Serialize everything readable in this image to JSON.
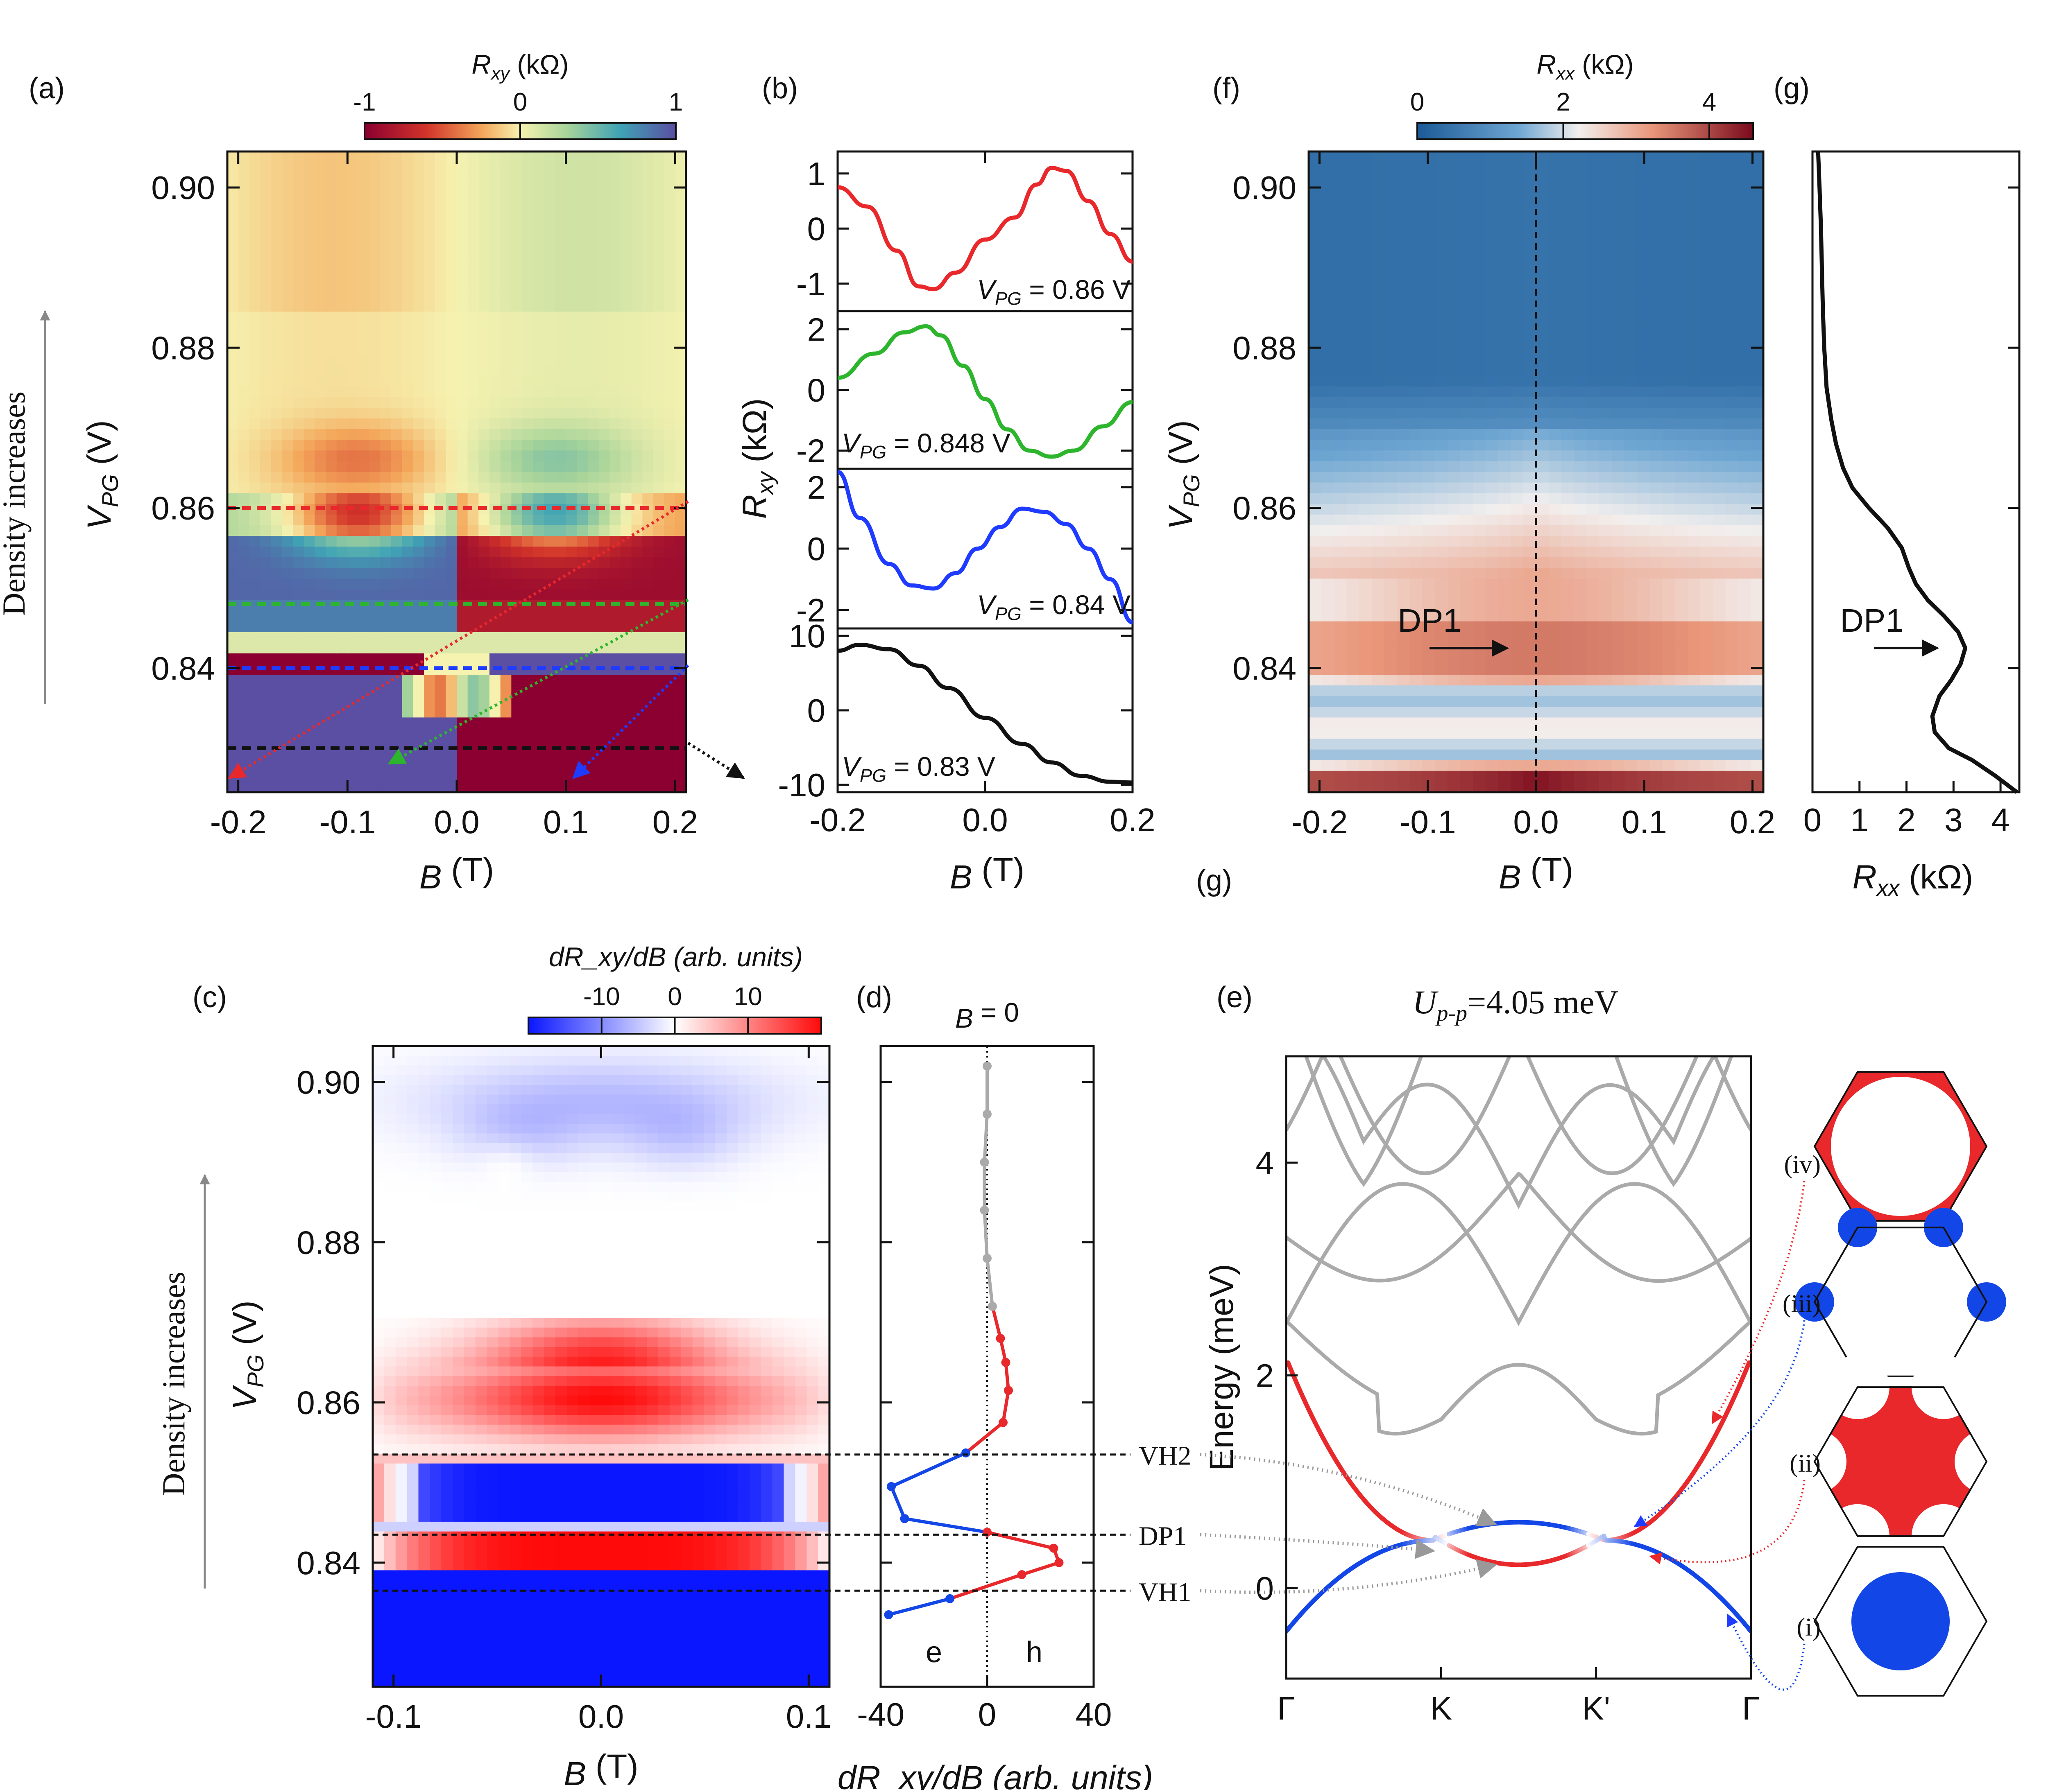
{
  "panels": {
    "a": "(a)",
    "b": "(b)",
    "c": "(c)",
    "d": "(d)",
    "e": "(e)",
    "f": "(f)",
    "g": "(g)",
    "g2": "(g)"
  },
  "side_labels": {
    "density_a": "Density increases",
    "density_c": "Density increases"
  },
  "colors": {
    "red": "#e8282b",
    "green": "#2db52d",
    "blue": "#1f3bff",
    "black": "#111111",
    "gray": "#aaaaaa",
    "hole": "#e8282b",
    "electron": "#1346e6"
  },
  "chart_data": [
    {
      "id": "a",
      "type": "heatmap",
      "title": "R_xy (kΩ)",
      "colorbar": {
        "label_main": "R",
        "label_sub": "xy",
        "label_unit": " (kΩ)",
        "ticks": [
          "-1",
          "0",
          "1"
        ],
        "range": [
          -1,
          1
        ]
      },
      "xlabel": "B (T)",
      "ylabel": "V_PG (V)",
      "xlim": [
        -0.21,
        0.21
      ],
      "ylim": [
        0.8245,
        0.9045
      ],
      "xticks": [
        "-0.2",
        "-0.1",
        "0.0",
        "0.1",
        "0.2"
      ],
      "xtick_values": [
        -0.2,
        -0.1,
        0.0,
        0.1,
        0.2
      ],
      "yticks": [
        "0.84",
        "0.86",
        "0.88",
        "0.90"
      ],
      "ytick_values": [
        0.84,
        0.86,
        0.88,
        0.9
      ],
      "cuts": [
        {
          "v": 0.86,
          "color": "red"
        },
        {
          "v": 0.848,
          "color": "green"
        },
        {
          "v": 0.84,
          "color": "blue"
        },
        {
          "v": 0.83,
          "color": "black"
        }
      ]
    },
    {
      "id": "b",
      "type": "line",
      "xlabel": "B (T)",
      "ylabel": "R_xy (kΩ)",
      "xlim": [
        -0.2,
        0.2
      ],
      "xticks": [
        "-0.2",
        "0.0",
        "0.2"
      ],
      "xtick_values": [
        -0.2,
        0.0,
        0.2
      ],
      "series": [
        {
          "name": "V_PG = 0.86 V",
          "label_val": " = 0.86 V",
          "color": "red",
          "ylim": [
            -1.5,
            1.4
          ],
          "yticks": [
            "1",
            "0",
            "-1"
          ],
          "ytick_values": [
            1,
            0,
            -1
          ],
          "x": [
            -0.2,
            -0.16,
            -0.12,
            -0.09,
            -0.07,
            -0.04,
            0.0,
            0.04,
            0.07,
            0.09,
            0.11,
            0.14,
            0.17,
            0.2
          ],
          "y": [
            0.75,
            0.4,
            -0.4,
            -1.05,
            -1.1,
            -0.8,
            -0.2,
            0.2,
            0.8,
            1.1,
            1.05,
            0.5,
            -0.1,
            -0.6
          ]
        },
        {
          "name": "V_PG = 0.848 V",
          "label_val": " = 0.848 V",
          "color": "green",
          "ylim": [
            -2.6,
            2.6
          ],
          "yticks": [
            "2",
            "0",
            "-2"
          ],
          "ytick_values": [
            2,
            0,
            -2
          ],
          "x": [
            -0.2,
            -0.15,
            -0.11,
            -0.08,
            -0.06,
            -0.03,
            0.0,
            0.03,
            0.06,
            0.09,
            0.12,
            0.16,
            0.2
          ],
          "y": [
            0.4,
            1.2,
            1.9,
            2.1,
            1.8,
            0.8,
            -0.3,
            -1.3,
            -2.0,
            -2.2,
            -2.0,
            -1.2,
            -0.4
          ]
        },
        {
          "name": "V_PG = 0.84 V",
          "label_val": " = 0.84 V",
          "color": "blue",
          "ylim": [
            -2.6,
            2.6
          ],
          "yticks": [
            "2",
            "0",
            "-2"
          ],
          "ytick_values": [
            2,
            0,
            -2
          ],
          "x": [
            -0.2,
            -0.17,
            -0.13,
            -0.1,
            -0.07,
            -0.04,
            -0.01,
            0.02,
            0.05,
            0.08,
            0.11,
            0.14,
            0.17,
            0.2
          ],
          "y": [
            2.5,
            1.0,
            -0.5,
            -1.2,
            -1.3,
            -0.8,
            0.0,
            0.7,
            1.3,
            1.2,
            0.8,
            0.0,
            -1.0,
            -2.4
          ]
        },
        {
          "name": "V_PG = 0.83 V",
          "label_val": " = 0.83 V",
          "color": "black",
          "ylim": [
            -11,
            11
          ],
          "yticks": [
            "10",
            "0",
            "-10"
          ],
          "ytick_values": [
            10,
            0,
            -10
          ],
          "x": [
            -0.2,
            -0.17,
            -0.13,
            -0.09,
            -0.05,
            0.0,
            0.05,
            0.09,
            0.13,
            0.17,
            0.2
          ],
          "y": [
            8.0,
            8.8,
            8.2,
            6.0,
            3.0,
            -1.0,
            -4.5,
            -7.0,
            -8.8,
            -9.6,
            -9.7
          ]
        }
      ]
    },
    {
      "id": "c",
      "type": "heatmap",
      "colorbar": {
        "label": "dR_xy/dB (arb. units)",
        "ticks": [
          "-10",
          "0",
          "10"
        ],
        "tick_values": [
          -10,
          0,
          10
        ],
        "range": [
          -20,
          20
        ]
      },
      "xlabel": "B (T)",
      "ylabel": "V_PG (V)",
      "xlim": [
        -0.11,
        0.11
      ],
      "ylim": [
        0.8245,
        0.9045
      ],
      "xticks": [
        "-0.1",
        "0.0",
        "0.1"
      ],
      "xtick_values": [
        -0.1,
        0.0,
        0.1
      ],
      "yticks": [
        "0.84",
        "0.86",
        "0.88",
        "0.90"
      ],
      "ytick_values": [
        0.84,
        0.86,
        0.88,
        0.9
      ],
      "lines": [
        {
          "name": "VH2",
          "v": 0.8535
        },
        {
          "name": "DP1",
          "v": 0.8435
        },
        {
          "name": "VH1",
          "v": 0.8365
        }
      ]
    },
    {
      "id": "d",
      "type": "line",
      "title": "B = 0",
      "xlabel": "dR_xy/dB (arb. units)",
      "xlim": [
        -40,
        40
      ],
      "ylim": [
        0.8245,
        0.9045
      ],
      "xticks": [
        "-40",
        "0",
        "40"
      ],
      "xtick_values": [
        -40,
        0,
        40
      ],
      "labels": {
        "e": "e",
        "h": "h"
      },
      "points": [
        {
          "x": -37,
          "v": 0.8335
        },
        {
          "x": -14,
          "v": 0.8355
        },
        {
          "x": 13,
          "v": 0.8385
        },
        {
          "x": 27,
          "v": 0.84
        },
        {
          "x": 25,
          "v": 0.8418
        },
        {
          "x": 0,
          "v": 0.8438
        },
        {
          "x": -31,
          "v": 0.8455
        },
        {
          "x": -36,
          "v": 0.8495
        },
        {
          "x": -8,
          "v": 0.8537
        },
        {
          "x": 6,
          "v": 0.8575
        },
        {
          "x": 8,
          "v": 0.8615
        },
        {
          "x": 7,
          "v": 0.865
        },
        {
          "x": 5,
          "v": 0.868
        },
        {
          "x": 2,
          "v": 0.872
        },
        {
          "x": 0,
          "v": 0.878
        },
        {
          "x": -1,
          "v": 0.884
        },
        {
          "x": -1,
          "v": 0.89
        },
        {
          "x": 0,
          "v": 0.896
        },
        {
          "x": 0,
          "v": 0.902
        }
      ]
    },
    {
      "id": "f",
      "type": "heatmap",
      "colorbar": {
        "label": "R_xx (kΩ)",
        "ticks": [
          "0",
          "2",
          "4"
        ],
        "tick_values": [
          0,
          2,
          4
        ],
        "range": [
          0,
          4.6
        ]
      },
      "xlabel": "B (T)",
      "ylabel": "V_PG (V)",
      "xlim": [
        -0.21,
        0.21
      ],
      "ylim": [
        0.8245,
        0.9045
      ],
      "xticks": [
        "-0.2",
        "-0.1",
        "0.0",
        "0.1",
        "0.2"
      ],
      "xtick_values": [
        -0.2,
        -0.1,
        0.0,
        0.1,
        0.2
      ],
      "yticks": [
        "0.84",
        "0.86",
        "0.88",
        "0.90"
      ],
      "ytick_values": [
        0.84,
        0.86,
        0.88,
        0.9
      ],
      "annotation": {
        "text": "DP1",
        "v": 0.843
      }
    },
    {
      "id": "g",
      "type": "line",
      "xlabel": "R_xx (kΩ)",
      "xlim": [
        0,
        4.4
      ],
      "ylim": [
        0.8245,
        0.9045
      ],
      "xticks": [
        "0",
        "1",
        "2",
        "3",
        "4"
      ],
      "xtick_values": [
        0,
        1,
        2,
        3,
        4
      ],
      "annotation": {
        "text": "DP1",
        "x": 3.2,
        "v": 0.8425
      },
      "x": [
        4.35,
        3.9,
        3.4,
        2.9,
        2.6,
        2.55,
        2.7,
        2.95,
        3.15,
        3.25,
        3.1,
        2.8,
        2.45,
        2.2,
        2.05,
        1.9,
        1.6,
        1.2,
        0.85,
        0.65,
        0.5,
        0.4,
        0.3,
        0.25,
        0.22,
        0.2,
        0.18,
        0.15,
        0.12
      ],
      "v": [
        0.8245,
        0.8265,
        0.8285,
        0.83,
        0.832,
        0.834,
        0.8365,
        0.8385,
        0.8405,
        0.8425,
        0.8445,
        0.8465,
        0.8485,
        0.8505,
        0.8525,
        0.855,
        0.8575,
        0.86,
        0.8625,
        0.865,
        0.868,
        0.871,
        0.875,
        0.88,
        0.885,
        0.89,
        0.895,
        0.9,
        0.9045
      ]
    },
    {
      "id": "e",
      "type": "line",
      "title_main": "U",
      "title_sub": "p-p",
      "title_rest": "=4.05 meV",
      "ylabel": "Energy (meV)",
      "ylim": [
        -0.85,
        5.0
      ],
      "yticks": [
        "0",
        "2",
        "4"
      ],
      "ytick_values": [
        0,
        2,
        4
      ],
      "xticks": [
        "Γ",
        "K",
        "K'",
        "Γ"
      ],
      "xtick_values": [
        0,
        1,
        2,
        3
      ],
      "annotations": [
        {
          "name": "VH2",
          "target": [
            1.35,
            0.6
          ]
        },
        {
          "name": "DP1",
          "target": [
            0.95,
            0.35
          ]
        },
        {
          "name": "VH1",
          "target": [
            1.35,
            0.22
          ]
        }
      ],
      "fermi_surfaces": [
        {
          "label": "(iv)",
          "color": "red",
          "target": [
            2.75,
            1.55
          ]
        },
        {
          "label": "(iii)",
          "color": "blue",
          "target": [
            2.25,
            0.58
          ]
        },
        {
          "label": "(ii)",
          "color": "red",
          "target": [
            2.35,
            0.3
          ]
        },
        {
          "label": "(i)",
          "color": "blue",
          "target": [
            2.85,
            -0.25
          ]
        }
      ]
    }
  ]
}
